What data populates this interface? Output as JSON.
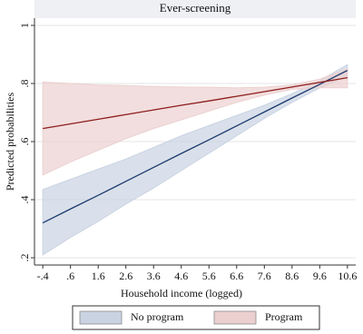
{
  "chart_data": {
    "type": "line",
    "title": "Ever-screening",
    "x_label": "Household income (logged)",
    "y_label": "Predicted probabilities",
    "x": [
      -0.4,
      0.6,
      1.6,
      2.6,
      3.6,
      4.6,
      5.6,
      6.6,
      7.6,
      8.6,
      9.6,
      10.6
    ],
    "series": [
      {
        "name": "No program",
        "color": "#1c3a6e",
        "band_color": "#c9d3e2",
        "values": [
          0.32,
          0.368,
          0.415,
          0.463,
          0.511,
          0.559,
          0.606,
          0.654,
          0.702,
          0.75,
          0.797,
          0.845
        ],
        "lower": [
          0.21,
          0.27,
          0.325,
          0.385,
          0.44,
          0.5,
          0.56,
          0.62,
          0.68,
          0.735,
          0.785,
          0.825
        ],
        "upper": [
          0.435,
          0.47,
          0.505,
          0.54,
          0.58,
          0.62,
          0.655,
          0.69,
          0.725,
          0.765,
          0.81,
          0.865
        ]
      },
      {
        "name": "Program",
        "color": "#8e1d1d",
        "band_color": "#ecd0d0",
        "values": [
          0.645,
          0.661,
          0.677,
          0.693,
          0.709,
          0.725,
          0.74,
          0.756,
          0.772,
          0.788,
          0.804,
          0.82
        ],
        "lower": [
          0.485,
          0.53,
          0.57,
          0.61,
          0.645,
          0.675,
          0.705,
          0.735,
          0.76,
          0.78,
          0.785,
          0.785
        ],
        "upper": [
          0.805,
          0.8,
          0.795,
          0.793,
          0.79,
          0.788,
          0.787,
          0.785,
          0.787,
          0.795,
          0.815,
          0.85
        ]
      }
    ],
    "xlim": [
      -0.7,
      10.9
    ],
    "ylim": [
      0.175,
      1.025
    ],
    "xticks": [
      {
        "value": -0.4,
        "label": "-.4"
      },
      {
        "value": 0.6,
        "label": ".6"
      },
      1.6,
      2.6,
      3.6,
      4.6,
      5.6,
      6.6,
      7.6,
      8.6,
      9.6,
      10.6
    ],
    "yticks": [
      {
        "value": 0.2,
        "label": ".2"
      },
      {
        "value": 0.4,
        "label": ".4"
      },
      {
        "value": 0.6,
        "label": ".6"
      },
      {
        "value": 0.8,
        "label": ".8"
      },
      1
    ],
    "grid": true
  }
}
